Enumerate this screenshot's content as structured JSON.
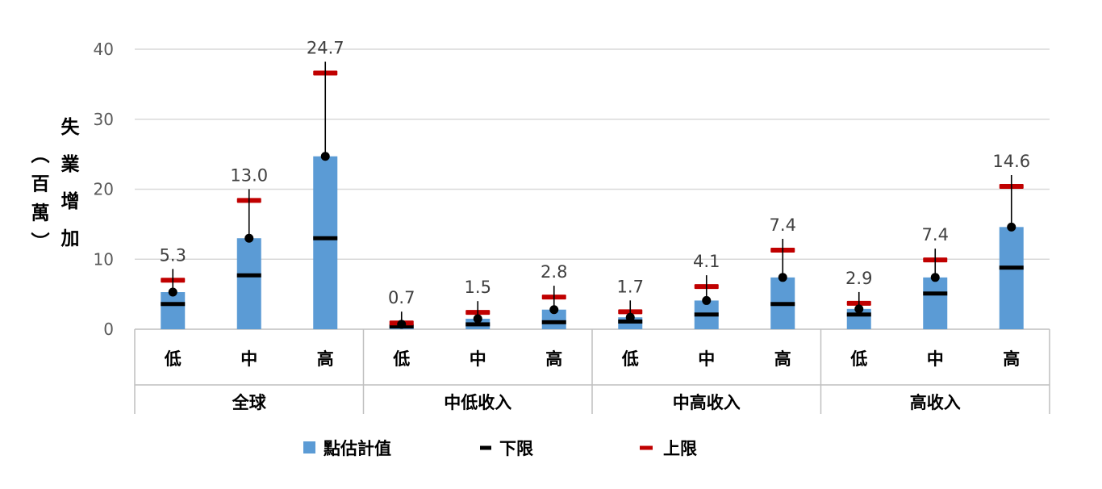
{
  "chart_data": {
    "type": "bar",
    "ylabel_line1": [
      "失",
      "業",
      "增",
      "加"
    ],
    "ylabel_line2": [
      "（",
      "百",
      "萬",
      "）"
    ],
    "ylim": [
      0,
      40
    ],
    "yticks": [
      "0",
      "10",
      "20",
      "30",
      "40"
    ],
    "ytick_values": [
      0,
      10,
      20,
      30,
      40
    ],
    "grid": true,
    "legend_position": "bottom",
    "groups": [
      {
        "label": "全球",
        "categories": [
          "低",
          "中",
          "高"
        ]
      },
      {
        "label": "中低收入",
        "categories": [
          "低",
          "中",
          "高"
        ]
      },
      {
        "label": "中高收入",
        "categories": [
          "低",
          "中",
          "高"
        ]
      },
      {
        "label": "高收入",
        "categories": [
          "低",
          "中",
          "高"
        ]
      }
    ],
    "series": [
      {
        "name": "點估計值",
        "color": "#5b9bd5",
        "values": [
          5.3,
          13.0,
          24.7,
          0.7,
          1.5,
          2.8,
          1.7,
          4.1,
          7.4,
          2.9,
          7.4,
          14.6
        ],
        "labels": [
          "5.3",
          "13.0",
          "24.7",
          "0.7",
          "1.5",
          "2.8",
          "1.7",
          "4.1",
          "7.4",
          "2.9",
          "7.4",
          "14.6"
        ]
      },
      {
        "name": "下限",
        "color": "#000000",
        "values": [
          3.6,
          7.7,
          13.0,
          0.4,
          0.7,
          1.0,
          1.1,
          2.1,
          3.6,
          2.1,
          5.1,
          8.8
        ]
      },
      {
        "name": "上限",
        "color": "#c00000",
        "values": [
          7.0,
          18.4,
          36.6,
          0.9,
          2.4,
          4.6,
          2.5,
          6.1,
          11.3,
          3.7,
          9.9,
          20.4
        ]
      }
    ]
  }
}
